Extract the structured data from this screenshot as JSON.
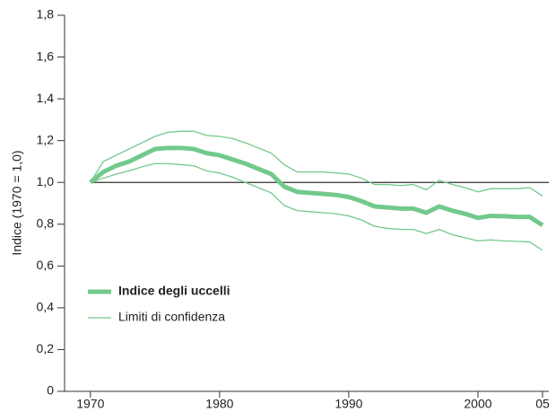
{
  "chart_data": {
    "type": "line",
    "y_label": "Indice (1970 = 1,0)",
    "x": [
      1970,
      1971,
      1972,
      1973,
      1974,
      1975,
      1976,
      1977,
      1978,
      1979,
      1980,
      1981,
      1982,
      1983,
      1984,
      1985,
      1986,
      1987,
      1988,
      1989,
      1990,
      1991,
      1992,
      1993,
      1994,
      1995,
      1996,
      1997,
      1998,
      1999,
      2000,
      2001,
      2002,
      2003,
      2004,
      2005
    ],
    "series": [
      {
        "name": "Indice degli uccelli",
        "color": "#72c98c",
        "values": [
          1.0,
          1.05,
          1.08,
          1.1,
          1.13,
          1.16,
          1.165,
          1.165,
          1.16,
          1.14,
          1.13,
          1.11,
          1.09,
          1.065,
          1.04,
          0.98,
          0.955,
          0.95,
          0.945,
          0.94,
          0.93,
          0.91,
          0.885,
          0.88,
          0.875,
          0.875,
          0.855,
          0.885,
          0.865,
          0.85,
          0.83,
          0.84,
          0.838,
          0.835,
          0.835,
          0.795
        ]
      },
      {
        "name": "Limiti di confidenza",
        "color": "#72c98c",
        "upper": [
          1.0,
          1.1,
          1.13,
          1.16,
          1.19,
          1.22,
          1.24,
          1.245,
          1.245,
          1.225,
          1.22,
          1.21,
          1.19,
          1.165,
          1.14,
          1.085,
          1.05,
          1.05,
          1.05,
          1.045,
          1.04,
          1.02,
          0.99,
          0.99,
          0.985,
          0.99,
          0.965,
          1.01,
          0.99,
          0.975,
          0.955,
          0.97,
          0.97,
          0.97,
          0.975,
          0.935
        ],
        "lower": [
          1.0,
          1.02,
          1.04,
          1.055,
          1.075,
          1.09,
          1.09,
          1.085,
          1.08,
          1.055,
          1.045,
          1.025,
          1.0,
          0.975,
          0.95,
          0.89,
          0.865,
          0.86,
          0.855,
          0.85,
          0.84,
          0.82,
          0.79,
          0.78,
          0.775,
          0.775,
          0.755,
          0.775,
          0.75,
          0.735,
          0.72,
          0.725,
          0.72,
          0.718,
          0.715,
          0.675
        ]
      }
    ],
    "reference_line": 1,
    "xlim": [
      1968,
      2005
    ],
    "xticks": [
      1970,
      1980,
      1990,
      2000,
      {
        "value": 2005,
        "label": "05"
      }
    ],
    "ylim": [
      0,
      1.8
    ],
    "yticks": [
      0,
      {
        "value": 0.2,
        "label": "0,2"
      },
      {
        "value": 0.4,
        "label": "0,4"
      },
      {
        "value": 0.6,
        "label": "0,6"
      },
      {
        "value": 0.8,
        "label": "0,8"
      },
      {
        "value": 1.0,
        "label": "1,0"
      },
      {
        "value": 1.2,
        "label": "1,2"
      },
      {
        "value": 1.4,
        "label": "1,4"
      },
      {
        "value": 1.6,
        "label": "1,6"
      },
      {
        "value": 1.8,
        "label": "1,8"
      }
    ]
  }
}
